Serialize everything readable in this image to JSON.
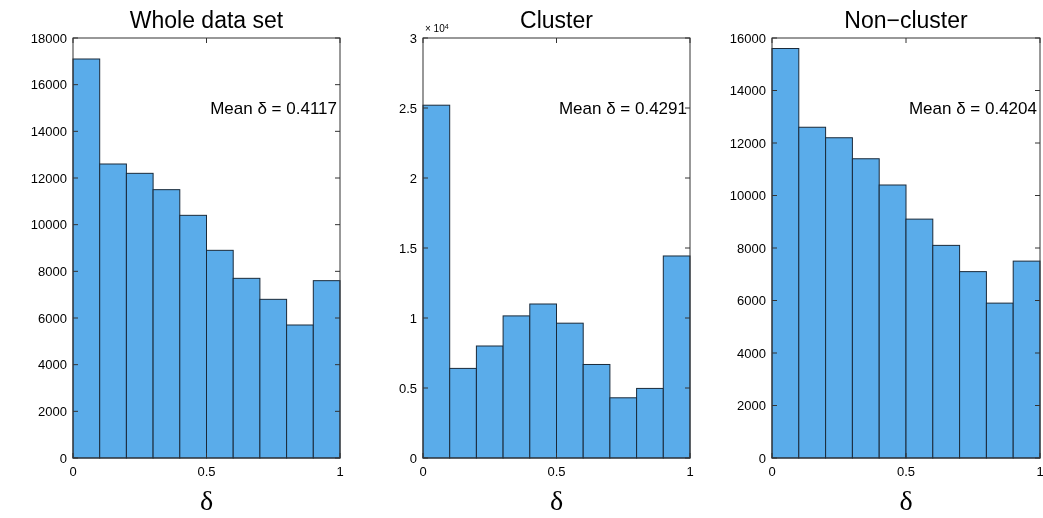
{
  "chart_data": [
    {
      "type": "histogram",
      "title": "Whole data set",
      "xlabel": "δ",
      "bins": [
        0,
        0.1,
        0.2,
        0.3,
        0.4,
        0.5,
        0.6,
        0.7,
        0.8,
        0.9,
        1
      ],
      "values": [
        17100,
        12600,
        12200,
        11500,
        10400,
        8900,
        7700,
        6800,
        5700,
        7600
      ],
      "color": "#5aacea",
      "xlim": [
        0,
        1
      ],
      "xticks": [
        0,
        0.5,
        1
      ],
      "ylim": [
        0,
        18000
      ],
      "yticks": [
        0,
        2000,
        4000,
        6000,
        8000,
        10000,
        12000,
        14000,
        16000,
        18000
      ],
      "annotations": [
        "Mean δ = 0.4117"
      ],
      "grid": false
    },
    {
      "type": "histogram",
      "title": "Cluster",
      "xlabel": "δ",
      "bins": [
        0,
        0.1,
        0.2,
        0.3,
        0.4,
        0.5,
        0.6,
        0.7,
        0.8,
        0.9,
        1
      ],
      "values": [
        2.52,
        0.64,
        0.8,
        1.015,
        1.1,
        0.963,
        0.668,
        0.43,
        0.497,
        1.443
      ],
      "color": "#5aacea",
      "xlim": [
        0,
        1
      ],
      "xticks": [
        0,
        0.5,
        1
      ],
      "ylim": [
        0,
        3
      ],
      "yticks": [
        0,
        0.5,
        1,
        1.5,
        2,
        2.5,
        3
      ],
      "annotations": [
        "Mean δ = 0.4291",
        "× 10$^{4}$"
      ],
      "grid": false
    },
    {
      "type": "histogram",
      "title": "Non−cluster",
      "xlabel": "δ",
      "bins": [
        0,
        0.1,
        0.2,
        0.3,
        0.4,
        0.5,
        0.6,
        0.7,
        0.8,
        0.9,
        1
      ],
      "values": [
        15600,
        12600,
        12200,
        11400,
        10400,
        9100,
        8100,
        7100,
        5900,
        7500
      ],
      "color": "#5aacea",
      "xlim": [
        0,
        1
      ],
      "xticks": [
        0,
        0.5,
        1
      ],
      "ylim": [
        0,
        16000
      ],
      "yticks": [
        0,
        2000,
        4000,
        6000,
        8000,
        10000,
        12000,
        14000,
        16000
      ],
      "annotations": [
        "Mean δ = 0.4204"
      ],
      "grid": false
    }
  ]
}
